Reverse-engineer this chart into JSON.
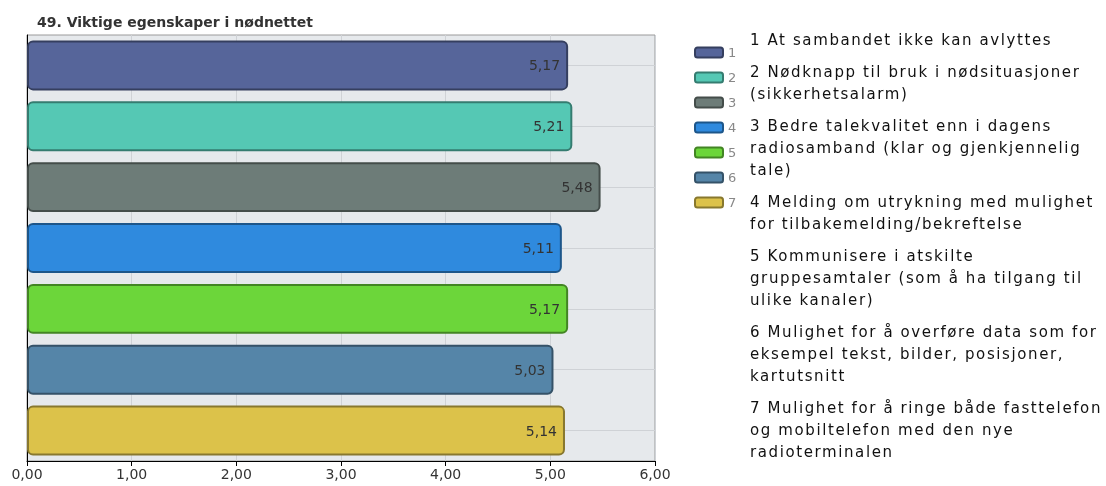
{
  "chart_data": {
    "type": "bar",
    "orientation": "horizontal",
    "title": "49. Viktige egenskaper i nødnettet",
    "categories": [
      null,
      null,
      null,
      null,
      null,
      null,
      null
    ],
    "series": [
      {
        "name": "1",
        "color": "#56659a",
        "values": [
          5.17,
          null,
          null,
          null,
          null,
          null,
          null
        ],
        "value_labels": [
          "5,17",
          null,
          null,
          null,
          null,
          null,
          null
        ]
      },
      {
        "name": "2",
        "color": "#55c8b4",
        "values": [
          null,
          5.21,
          null,
          null,
          null,
          null,
          null
        ],
        "value_labels": [
          null,
          "5,21",
          null,
          null,
          null,
          null,
          null
        ]
      },
      {
        "name": "3",
        "color": "#6d7c78",
        "values": [
          null,
          null,
          5.48,
          null,
          null,
          null,
          null
        ],
        "value_labels": [
          null,
          null,
          "5,48",
          null,
          null,
          null,
          null
        ]
      },
      {
        "name": "4",
        "color": "#2f8ade",
        "values": [
          null,
          null,
          null,
          5.11,
          null,
          null,
          null
        ],
        "value_labels": [
          null,
          null,
          null,
          "5,11",
          null,
          null,
          null
        ]
      },
      {
        "name": "5",
        "color": "#6cd63a",
        "values": [
          null,
          null,
          null,
          null,
          5.17,
          null,
          null
        ],
        "value_labels": [
          null,
          null,
          null,
          null,
          "5,17",
          null,
          null
        ]
      },
      {
        "name": "6",
        "color": "#5585a8",
        "values": [
          null,
          null,
          null,
          null,
          null,
          5.03,
          null
        ],
        "value_labels": [
          null,
          null,
          null,
          null,
          null,
          "5,03",
          null
        ]
      },
      {
        "name": "7",
        "color": "#dcc24a",
        "values": [
          null,
          null,
          null,
          null,
          null,
          null,
          5.14
        ],
        "value_labels": [
          null,
          null,
          null,
          null,
          null,
          null,
          "5,14"
        ]
      }
    ],
    "xlim": [
      0,
      6
    ],
    "xticks": [
      {
        "value": 0,
        "label": "0,00"
      },
      {
        "value": 1,
        "label": "1,00"
      },
      {
        "value": 2,
        "label": "2,00"
      },
      {
        "value": 3,
        "label": "3,00"
      },
      {
        "value": 4,
        "label": "4,00"
      },
      {
        "value": 5,
        "label": "5,00"
      },
      {
        "value": 6,
        "label": "6,00"
      }
    ],
    "grid": true,
    "legend": "right",
    "annotations": [
      "1 At sambandet ikke kan avlyttes",
      "2 Nødknapp til bruk i nødsituasjoner (sikkerhetsalarm)",
      "3 Bedre talekvalitet enn i dagens radiosamband (klar og gjenkjennelig tale)",
      "4 Melding om utrykning med mulighet for tilbakemelding/bekreftelse",
      "5 Kommunisere i atskilte gruppesamtaler (som å ha tilgang til ulike kanaler)",
      "6 Mulighet for å overføre data som for eksempel tekst, bilder, posisjoner, kartutsnitt",
      "7 Mulighet for å ringe både fasttelefon og mobiltelefon med den nye radioterminalen"
    ]
  }
}
